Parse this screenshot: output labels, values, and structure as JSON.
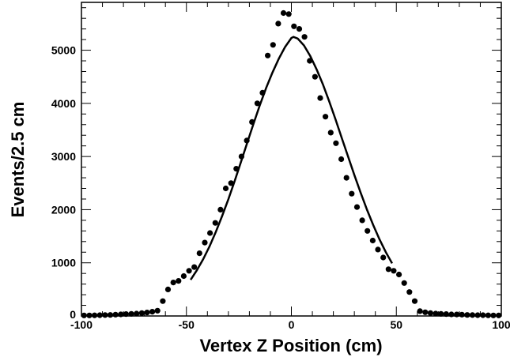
{
  "chart_data": {
    "type": "scatter",
    "title": "",
    "xlabel": "Vertex Z Position (cm)",
    "ylabel": "Events/2.5 cm",
    "xlim": [
      -100,
      100
    ],
    "ylim": [
      0,
      5900
    ],
    "x_ticks": [
      "-100",
      "-50",
      "0",
      "50",
      "100"
    ],
    "y_ticks": [
      "0",
      "1000",
      "2000",
      "3000",
      "4000",
      "5000"
    ],
    "grid": false,
    "series": [
      {
        "kind": "points",
        "x": [
          -98.75,
          -96.25,
          -93.75,
          -91.25,
          -88.75,
          -86.25,
          -83.75,
          -81.25,
          -78.75,
          -76.25,
          -73.75,
          -71.25,
          -68.75,
          -66.25,
          -63.75,
          -61.25,
          -58.75,
          -56.25,
          -53.75,
          -51.25,
          -48.75,
          -46.25,
          -43.75,
          -41.25,
          -38.75,
          -36.25,
          -33.75,
          -31.25,
          -28.75,
          -26.25,
          -23.75,
          -21.25,
          -18.75,
          -16.25,
          -13.75,
          -11.25,
          -8.75,
          -6.25,
          -3.75,
          -1.25,
          1.25,
          3.75,
          6.25,
          8.75,
          11.25,
          13.75,
          16.25,
          18.75,
          21.25,
          23.75,
          26.25,
          28.75,
          31.25,
          33.75,
          36.25,
          38.75,
          41.25,
          43.75,
          46.25,
          48.75,
          51.25,
          53.75,
          56.25,
          58.75,
          61.25,
          63.75,
          66.25,
          68.75,
          71.25,
          73.75,
          76.25,
          78.75,
          81.25,
          83.75,
          86.25,
          88.75,
          91.25,
          93.75,
          96.25,
          98.75
        ],
        "y": [
          10,
          10,
          12,
          15,
          18,
          20,
          25,
          30,
          35,
          40,
          45,
          55,
          65,
          80,
          100,
          280,
          500,
          630,
          660,
          750,
          850,
          920,
          1180,
          1380,
          1560,
          1750,
          2000,
          2400,
          2500,
          2770,
          3000,
          3300,
          3650,
          4000,
          4200,
          4900,
          5100,
          5500,
          5700,
          5680,
          5450,
          5400,
          5250,
          4800,
          4500,
          4100,
          3750,
          3450,
          3250,
          2950,
          2600,
          2300,
          2050,
          1800,
          1600,
          1420,
          1250,
          1100,
          880,
          850,
          780,
          620,
          450,
          280,
          90,
          70,
          55,
          45,
          40,
          35,
          30,
          28,
          25,
          20,
          18,
          15,
          15,
          12,
          10,
          10
        ]
      },
      {
        "kind": "fit",
        "x": [
          -48,
          -45,
          -42,
          -39,
          -36,
          -33,
          -30,
          -27,
          -24,
          -21,
          -18,
          -15,
          -12,
          -9,
          -6,
          -3,
          0,
          1,
          3,
          6,
          9,
          12,
          15,
          18,
          21,
          24,
          27,
          30,
          33,
          36,
          39,
          42,
          45,
          48
        ],
        "y": [
          680,
          860,
          1070,
          1310,
          1580,
          1880,
          2200,
          2540,
          2900,
          3260,
          3620,
          3970,
          4290,
          4580,
          4840,
          5060,
          5230,
          5250,
          5220,
          5090,
          4890,
          4640,
          4360,
          4040,
          3700,
          3350,
          3000,
          2650,
          2320,
          2000,
          1710,
          1440,
          1200,
          990
        ]
      }
    ]
  }
}
